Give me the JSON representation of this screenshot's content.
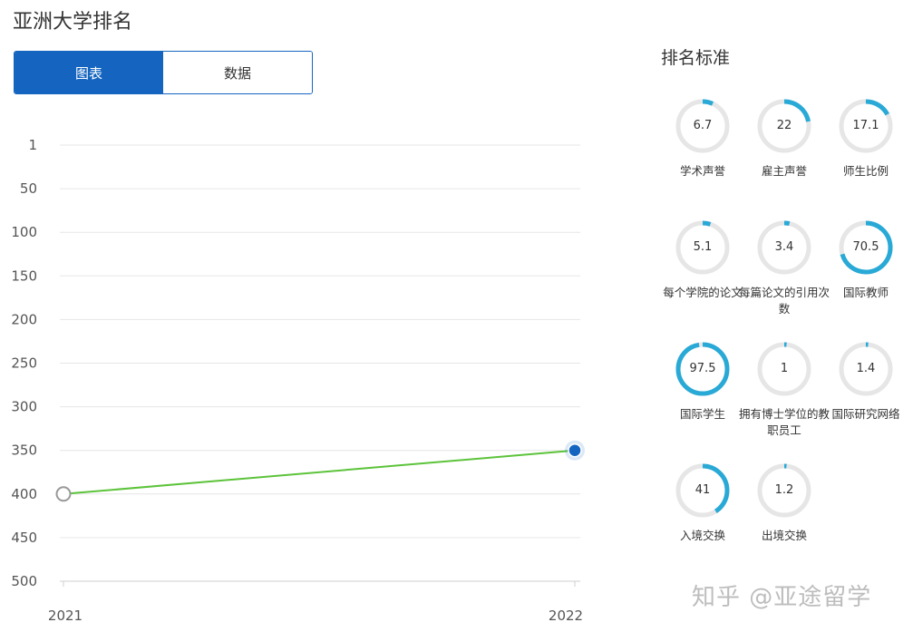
{
  "title": "亚洲大学排名",
  "tabs": [
    {
      "label": "图表",
      "active": true
    },
    {
      "label": "数据",
      "active": false
    }
  ],
  "chart_data": {
    "type": "line",
    "y_ticks": [
      "1",
      "50",
      "100",
      "150",
      "200",
      "250",
      "300",
      "350",
      "400",
      "450",
      "500"
    ],
    "ylim": [
      1,
      500
    ],
    "y_inverted": true,
    "x": [
      "2021",
      "2022"
    ],
    "series": [
      {
        "values": [
          400,
          350
        ],
        "color": "#5cc33a"
      }
    ],
    "grid": true
  },
  "criteria": {
    "title": "排名标准",
    "items": [
      {
        "label": "学术声誉",
        "value": "6.7"
      },
      {
        "label": "雇主声誉",
        "value": "22"
      },
      {
        "label": "师生比例",
        "value": "17.1"
      },
      {
        "label": "每个学院的论文",
        "value": "5.1"
      },
      {
        "label": "每篇论文的引用次数",
        "value": "3.4"
      },
      {
        "label": "国际教师",
        "value": "70.5"
      },
      {
        "label": "国际学生",
        "value": "97.5"
      },
      {
        "label": "拥有博士学位的教职员工",
        "value": "1"
      },
      {
        "label": "国际研究网络",
        "value": "1.4"
      },
      {
        "label": "入境交换",
        "value": "41"
      },
      {
        "label": "出境交换",
        "value": "1.2"
      }
    ]
  },
  "colors": {
    "accent": "#1565c0",
    "ring": "#29a9d6",
    "ring_track": "#e6e6e6",
    "line": "#5cc33a"
  },
  "watermark": "知乎 @亚途留学"
}
